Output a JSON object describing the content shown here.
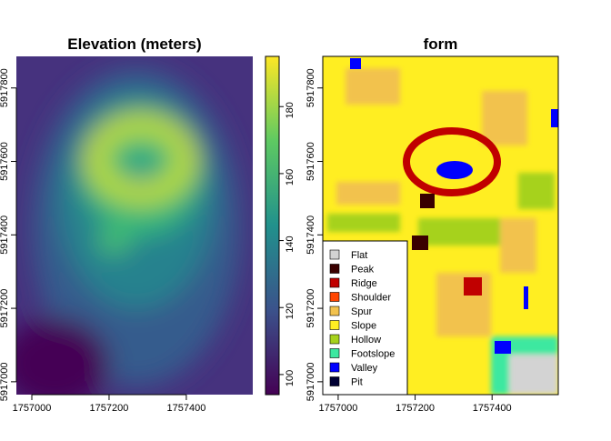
{
  "chart_data": [
    {
      "type": "raster",
      "title": "Elevation (meters)",
      "xlim": [
        1756960,
        1757572
      ],
      "ylim": [
        5916965,
        5917886
      ],
      "xticks": [
        1757000,
        1757200,
        1757400
      ],
      "yticks": [
        5917000,
        5917200,
        5917400,
        5917600,
        5917800
      ],
      "colorbar": {
        "lim": [
          94,
          195
        ],
        "ticks": [
          100,
          120,
          140,
          160,
          180
        ]
      }
    },
    {
      "type": "raster",
      "title": "form",
      "xlim": [
        1756960,
        1757572
      ],
      "ylim": [
        5916965,
        5917886
      ],
      "xticks": [
        1757000,
        1757200,
        1757400
      ],
      "yticks": [
        5917000,
        5917200,
        5917400,
        5917600,
        5917800
      ],
      "legend": "bottomleft",
      "categories": [
        "Flat",
        "Peak",
        "Ridge",
        "Shoulder",
        "Spur",
        "Slope",
        "Hollow",
        "Footslope",
        "Valley",
        "Pit"
      ],
      "colors": [
        "#d3d3d3",
        "#3a0000",
        "#c00000",
        "#ff4500",
        "#f2c24e",
        "#ffee22",
        "#a6d21c",
        "#3ce8a0",
        "#0000ff",
        "#000033"
      ]
    }
  ]
}
